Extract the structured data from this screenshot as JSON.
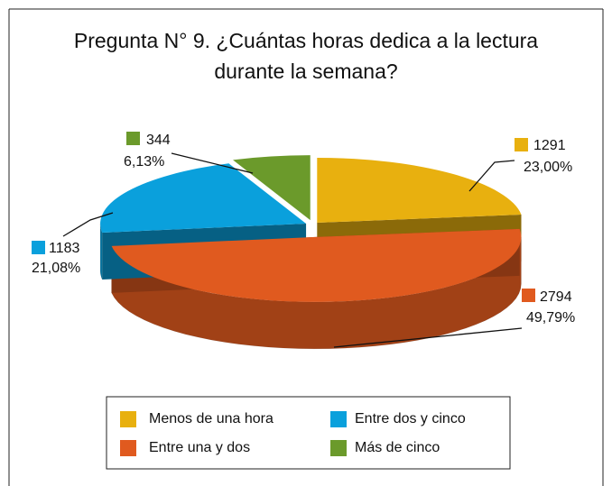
{
  "chart_data": {
    "type": "pie3d",
    "title": "Pregunta N° 9. ¿Cuántas horas dedica a la lectura",
    "subtitle": "durante la semana?",
    "categories": [
      "Menos de una hora",
      "Entre una y dos",
      "Entre dos y cinco",
      "Más de cinco"
    ],
    "values": [
      1291,
      2794,
      1183,
      344
    ],
    "percent_labels": [
      "23,00%",
      "49,79%",
      "21,08%",
      "6,13%"
    ],
    "colors": [
      "#e8b00f",
      "#e05a1f",
      "#0aa0dc",
      "#6b9a2b"
    ],
    "legend": "bottom"
  }
}
